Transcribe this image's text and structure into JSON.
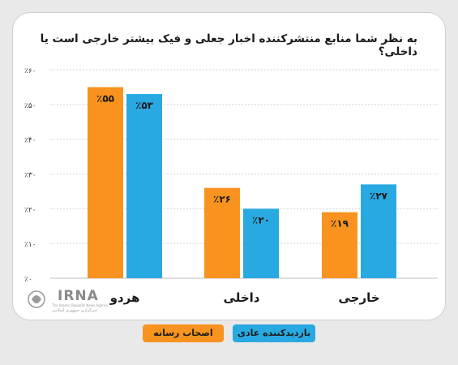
{
  "title": "به نظر شما منابع منتشرکننده اخبار جعلی و فیک بیشتر خارجی است یا داخلی؟",
  "colors": {
    "orange": "#f7931e",
    "blue": "#29a9e1",
    "grid": "#d5d5d5"
  },
  "legend": {
    "orange": "اصحاب رسانه",
    "blue": "بازدیدکننده عادی"
  },
  "logo": {
    "name": "IRNA",
    "sub_en": "The Islamic Republic News Agency",
    "sub_fa": "خبرگزاری جمهوری اسلامی"
  },
  "chart_data": {
    "type": "bar",
    "categories": [
      "هردو",
      "داخلی",
      "خارجی"
    ],
    "series": [
      {
        "name": "اصحاب رسانه",
        "color": "#f7931e",
        "values": [
          55,
          26,
          19
        ],
        "labels": [
          "٪۵۵",
          "٪۲۶",
          "٪۱۹"
        ]
      },
      {
        "name": "بازدیدکننده عادی",
        "color": "#29a9e1",
        "values": [
          53,
          20,
          27
        ],
        "labels": [
          "٪۵۳",
          "٪۲۰",
          "٪۲۷"
        ]
      }
    ],
    "ylim": [
      0,
      60
    ],
    "yticks": [
      0,
      10,
      20,
      30,
      40,
      50,
      60
    ],
    "ytick_labels": [
      "٪۰",
      "٪۱۰",
      "٪۲۰",
      "٪۳۰",
      "٪۴۰",
      "٪۵۰",
      "٪۶۰"
    ],
    "grid": true,
    "legend_position": "bottom"
  }
}
